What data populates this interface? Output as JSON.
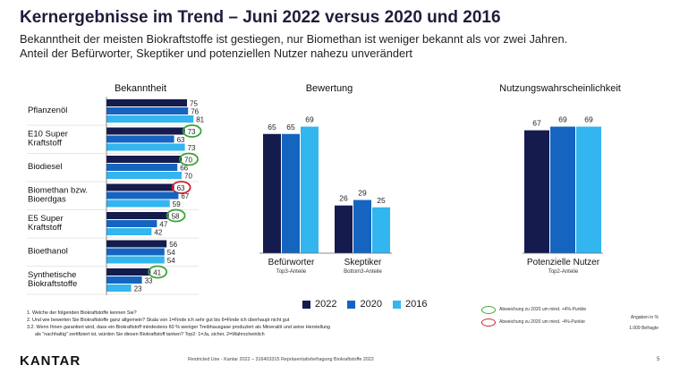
{
  "page": {
    "title": "Kernergebnisse im Trend – Juni 2022 versus 2020 und 2016",
    "subtitle_lines": [
      "Bekanntheit der meisten Biokraftstoffe ist gestiegen, nur Biomethan ist weniger bekannt als vor zwei Jahren.",
      "Anteil der Befürworter, Skeptiker und potenziellen Nutzer nahezu unverändert"
    ]
  },
  "colors": {
    "2022": "#141b4d",
    "2020": "#1565c0",
    "2016": "#33b5f0",
    "ring_green": "#3aa535",
    "ring_red": "#d3202e"
  },
  "chart_data": [
    {
      "type": "bar",
      "orientation": "horizontal",
      "title": "Bekanntheit",
      "categories": [
        "Pflanzenöl",
        "E10 Super Kraftstoff",
        "Biodiesel",
        "Biomethan bzw. Bioerdgas",
        "E5 Super Kraftstoff",
        "Bioethanol",
        "Synthetische Biokraftstoffe"
      ],
      "category_lines": [
        [
          "Pflanzenöl"
        ],
        [
          "E10 Super",
          "Kraftstoff"
        ],
        [
          "Biodiesel"
        ],
        [
          "Biomethan bzw.",
          "Bioerdgas"
        ],
        [
          "E5 Super",
          "Kraftstoff"
        ],
        [
          "Bioethanol"
        ],
        [
          "Synthetische",
          "Biokraftstoffe"
        ]
      ],
      "series": [
        {
          "name": "2022",
          "values": [
            75,
            73,
            70,
            63,
            58,
            56,
            41
          ]
        },
        {
          "name": "2020",
          "values": [
            76,
            63,
            66,
            67,
            47,
            54,
            33
          ]
        },
        {
          "name": "2016",
          "values": [
            81,
            73,
            70,
            59,
            42,
            54,
            23
          ]
        }
      ],
      "highlight_2022": [
        "none",
        "green",
        "green",
        "red",
        "green",
        "none",
        "green"
      ],
      "xlim": [
        0,
        100
      ]
    },
    {
      "type": "bar",
      "title": "Bewertung",
      "categories": [
        "Befürworter",
        "Skeptiker"
      ],
      "category_sublabels": [
        "Top3-Anteile",
        "Bottom3-Anteile"
      ],
      "series": [
        {
          "name": "2022",
          "values": [
            65,
            26
          ]
        },
        {
          "name": "2020",
          "values": [
            65,
            29
          ]
        },
        {
          "name": "2016",
          "values": [
            69,
            25
          ]
        }
      ],
      "ylim": [
        0,
        100
      ]
    },
    {
      "type": "bar",
      "title": "Nutzungswahrscheinlichkeit",
      "categories": [
        "Potenzielle Nutzer"
      ],
      "category_sublabels": [
        "Top2-Anteile"
      ],
      "series": [
        {
          "name": "2022",
          "values": [
            67
          ]
        },
        {
          "name": "2020",
          "values": [
            69
          ]
        },
        {
          "name": "2016",
          "values": [
            69
          ]
        }
      ],
      "ylim": [
        0,
        100
      ]
    }
  ],
  "legend": {
    "items": [
      "2022",
      "2020",
      "2016"
    ]
  },
  "notes": {
    "green": "Abweichung zu 2020 um mind. +4%-Punkte",
    "red": "Abweichung zu 2020 um mind. -4%-Punkte",
    "unit": "Angaben in %",
    "base": "1.009 Befragte"
  },
  "footnotes": [
    "1. Welche der folgenden Biokraftstoffe kennen Sie?",
    "2. Und wie bewerten Sie Biokraftstoffe ganz allgemein? Skala von 1=Finde ich sehr gut bis 6=Finde ich überhaupt nicht gut",
    "3.2. Wenn Ihnen garantiert wird, dass ein Biokraftstoff mindestens 60 % weniger Treibhausgase produziert als Mineralöl und seine Herstellung",
    "      als \"nachhaltig\" zertifiziert ist, würden Sie diesen Biokraftstoff tanken? Top2: 1=Ja, sicher, 2=Wahrscheinlich"
  ],
  "footer": {
    "logo": "KANTAR",
    "text": "Restricted Use - Kantar 2022 – 316403315 Repräsentativbefragung Biokraftstoffe 2022",
    "page": "5"
  }
}
